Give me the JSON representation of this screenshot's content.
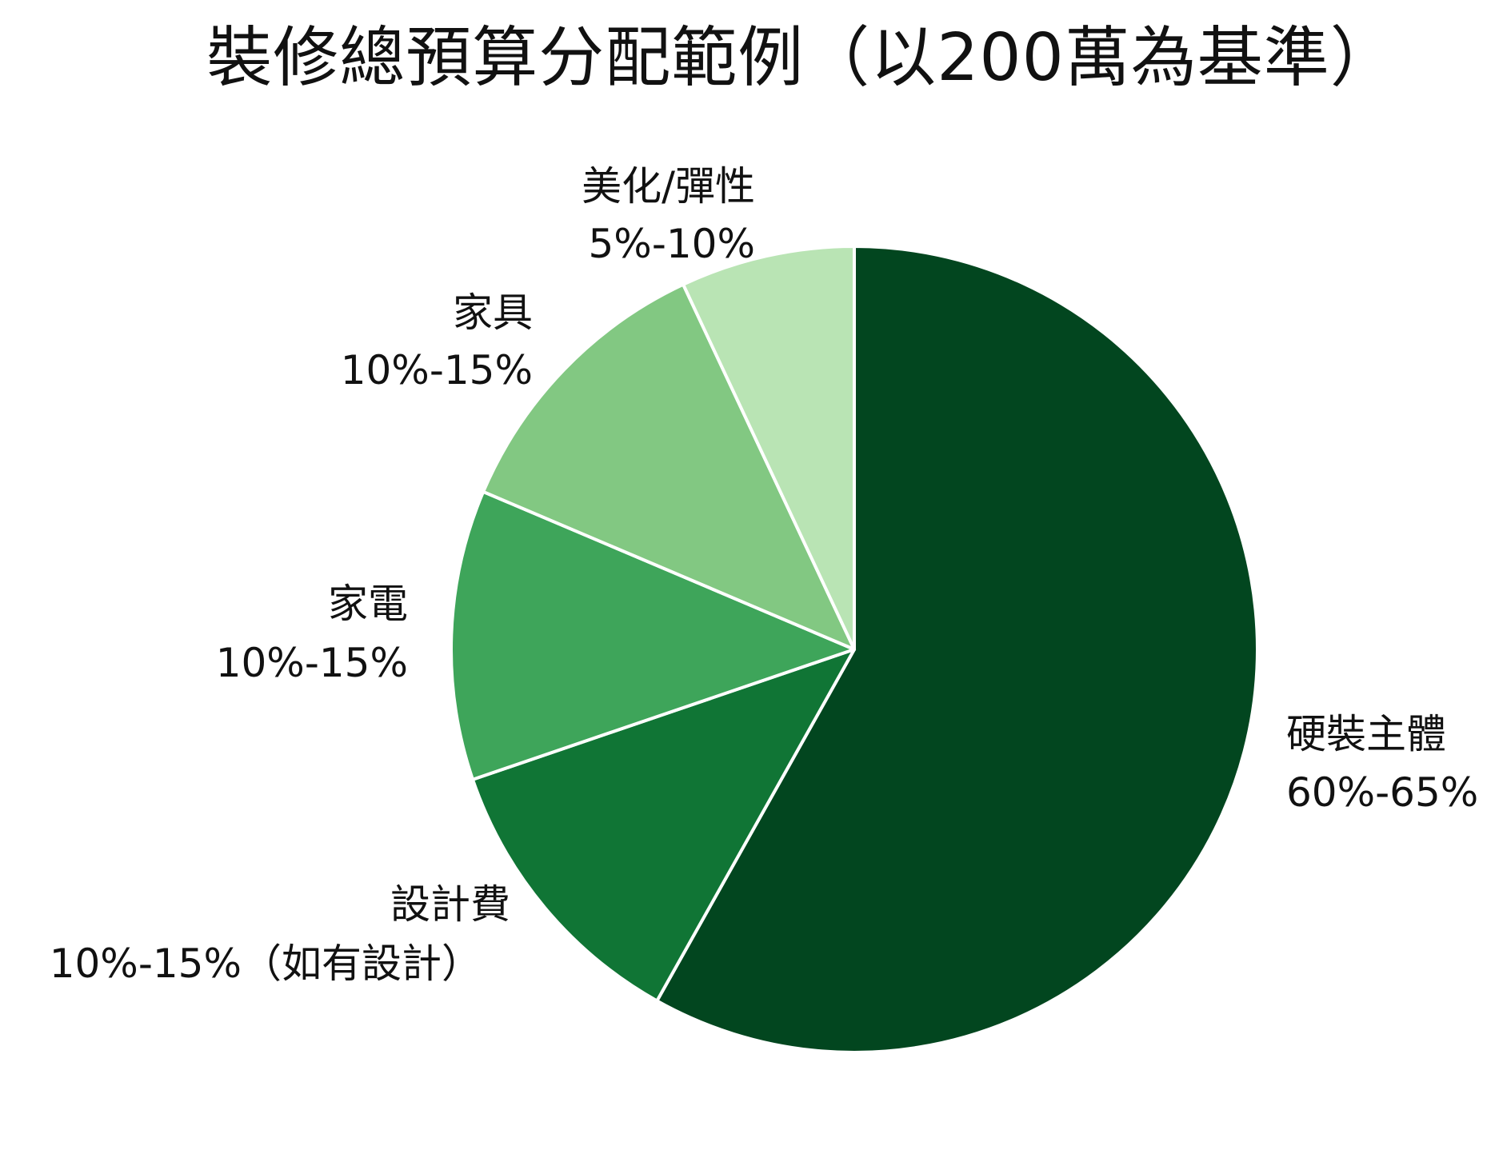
{
  "chart_data": {
    "type": "pie",
    "title": "裝修總預算分配範例（以200萬為基準）",
    "slices": [
      {
        "name": "硬裝主體",
        "range": "60%-65%",
        "value": 62.5,
        "color": "#02461f"
      },
      {
        "name": "設計費",
        "range": "10%-15%（如有設計）",
        "value": 12.5,
        "color": "#107535"
      },
      {
        "name": "家電",
        "range": "10%-15%",
        "value": 12.5,
        "color": "#3ea55a"
      },
      {
        "name": "家具",
        "range": "10%-15%",
        "value": 12.5,
        "color": "#82c882"
      },
      {
        "name": "美化/彈性",
        "range": "5%-10%",
        "value": 7.5,
        "color": "#b9e4b4"
      }
    ],
    "start_angle": "12 o'clock",
    "direction": "clockwise",
    "legend": "none"
  }
}
